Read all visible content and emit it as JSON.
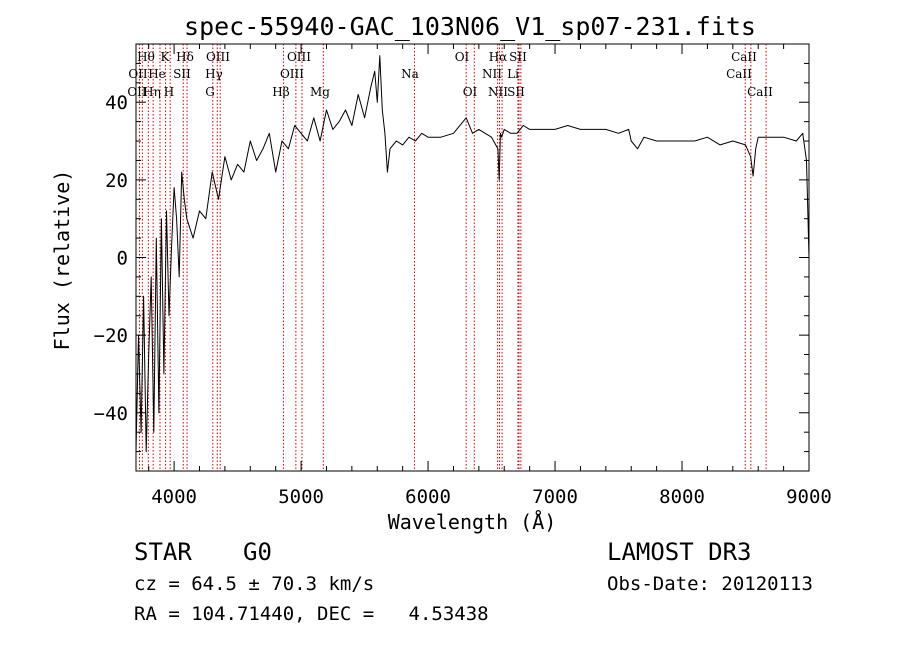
{
  "chart_data": {
    "type": "line",
    "title": "spec-55940-GAC_103N06_V1_sp07-231.fits",
    "xlabel": "Wavelength (Å)",
    "ylabel": "Flux (relative)",
    "xlim": [
      3700,
      9000
    ],
    "ylim": [
      -55,
      55
    ],
    "xticks": [
      4000,
      5000,
      6000,
      7000,
      8000,
      9000
    ],
    "yticks": [
      -40,
      -20,
      0,
      20,
      40
    ],
    "grid": false,
    "series": [
      {
        "name": "flux",
        "x": [
          3700,
          3720,
          3740,
          3760,
          3780,
          3800,
          3820,
          3840,
          3860,
          3880,
          3900,
          3920,
          3940,
          3960,
          3980,
          4000,
          4020,
          4040,
          4060,
          4080,
          4100,
          4150,
          4200,
          4250,
          4300,
          4350,
          4400,
          4450,
          4500,
          4550,
          4600,
          4650,
          4700,
          4750,
          4800,
          4850,
          4900,
          4950,
          5000,
          5050,
          5100,
          5150,
          5200,
          5250,
          5300,
          5350,
          5400,
          5450,
          5500,
          5550,
          5580,
          5600,
          5620,
          5640,
          5660,
          5680,
          5700,
          5750,
          5800,
          5850,
          5900,
          5950,
          6000,
          6100,
          6200,
          6300,
          6350,
          6400,
          6450,
          6500,
          6550,
          6560,
          6570,
          6580,
          6600,
          6650,
          6700,
          6750,
          6800,
          6900,
          7000,
          7100,
          7200,
          7300,
          7400,
          7500,
          7580,
          7600,
          7650,
          7700,
          7800,
          7900,
          8000,
          8100,
          8200,
          8300,
          8400,
          8500,
          8540,
          8560,
          8580,
          8600,
          8700,
          8800,
          8900,
          8950,
          8980,
          9000
        ],
        "values": [
          -50,
          -20,
          -45,
          -10,
          -50,
          -25,
          -5,
          -45,
          5,
          -40,
          10,
          -30,
          12,
          -15,
          3,
          18,
          10,
          -5,
          22,
          15,
          10,
          5,
          12,
          10,
          22,
          15,
          26,
          20,
          24,
          22,
          30,
          25,
          28,
          32,
          22,
          30,
          28,
          34,
          32,
          30,
          36,
          30,
          38,
          33,
          35,
          38,
          34,
          42,
          36,
          44,
          48,
          40,
          52,
          38,
          32,
          22,
          28,
          30,
          29,
          31,
          30,
          32,
          31,
          31,
          32,
          36,
          32,
          33,
          32,
          31,
          28,
          20,
          32,
          31,
          33,
          32,
          32,
          34,
          33,
          33,
          33,
          34,
          33,
          33,
          33,
          32,
          33,
          30,
          28,
          31,
          30,
          30,
          30,
          30,
          31,
          29,
          30,
          29,
          26,
          21,
          28,
          31,
          31,
          31,
          30,
          32,
          25,
          0
        ]
      }
    ],
    "annotations": {
      "top": [
        "Hθ",
        "K",
        "Hδ",
        "OIII",
        "OIII",
        "OI",
        "Hα",
        "SII",
        "CaII"
      ],
      "second": [
        "OII",
        "He",
        "SII",
        "Hγ",
        "OIII",
        "Na",
        "NII",
        "Li",
        "CaII"
      ],
      "third": [
        "OII",
        "Hη",
        "H",
        "G",
        "Hβ",
        "Mg",
        "OI",
        "NII",
        "SII",
        "CaII"
      ]
    },
    "line_markers": [
      3727,
      3750,
      3797,
      3835,
      3889,
      3933,
      3969,
      4072,
      4102,
      4305,
      4340,
      4363,
      4861,
      4959,
      5007,
      5175,
      5893,
      6300,
      6364,
      6548,
      6563,
      6583,
      6708,
      6716,
      6731,
      8498,
      8542,
      8662
    ]
  },
  "footer": {
    "class_label": "STAR",
    "subclass_label": "G0",
    "velocity": "cz = 64.5 ± 70.3 km/s",
    "coords": "RA = 104.71440, DEC =   4.53438",
    "survey": "LAMOST DR3",
    "obs_date": "Obs-Date: 20120113"
  }
}
